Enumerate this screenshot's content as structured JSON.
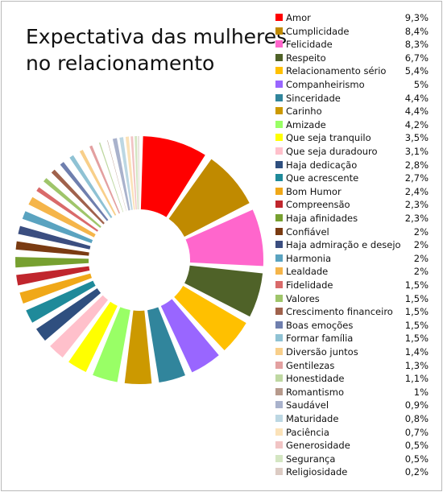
{
  "chart_data": {
    "type": "pie",
    "title_lines": [
      "Expectativa das mulheres",
      "no relacionamento"
    ],
    "legend_position": "right",
    "slices": [
      {
        "label": "Amor",
        "display": "9,3%",
        "value": 9.3,
        "color": "#ff0000"
      },
      {
        "label": "Cumplicidade",
        "display": "8,4%",
        "value": 8.4,
        "color": "#c08a00"
      },
      {
        "label": "Felicidade",
        "display": "8,3%",
        "value": 8.3,
        "color": "#ff66cc"
      },
      {
        "label": "Respeito",
        "display": "6,7%",
        "value": 6.7,
        "color": "#4f6228"
      },
      {
        "label": "Relacionamento sério",
        "display": "5,4%",
        "value": 5.4,
        "color": "#ffc000"
      },
      {
        "label": "Companheirismo",
        "display": "5%",
        "value": 5.0,
        "color": "#9966ff"
      },
      {
        "label": "Sinceridade",
        "display": "4,4%",
        "value": 4.4,
        "color": "#31859c"
      },
      {
        "label": "Carinho",
        "display": "4,4%",
        "value": 4.4,
        "color": "#cc9900"
      },
      {
        "label": "Amizade",
        "display": "4,2%",
        "value": 4.2,
        "color": "#99ff66"
      },
      {
        "label": "Que seja tranquilo",
        "display": "3,5%",
        "value": 3.5,
        "color": "#ffff00"
      },
      {
        "label": "Que seja duradouro",
        "display": "3,1%",
        "value": 3.1,
        "color": "#ffc0cb"
      },
      {
        "label": "Haja dedicação",
        "display": "2,8%",
        "value": 2.8,
        "color": "#2f4f7f"
      },
      {
        "label": "Que acrescente",
        "display": "2,7%",
        "value": 2.7,
        "color": "#1f8a9a"
      },
      {
        "label": "Bom Humor",
        "display": "2,4%",
        "value": 2.4,
        "color": "#f0a818"
      },
      {
        "label": "Compreensão",
        "display": "2,3%",
        "value": 2.3,
        "color": "#c0262d"
      },
      {
        "label": "Haja afinidades",
        "display": "2,3%",
        "value": 2.3,
        "color": "#77a030"
      },
      {
        "label": "Confiável",
        "display": "2%",
        "value": 2.0,
        "color": "#7a3b12"
      },
      {
        "label": "Haja admiração e desejo",
        "display": "2%",
        "value": 2.0,
        "color": "#3b4e80"
      },
      {
        "label": "Harmonia",
        "display": "2%",
        "value": 2.0,
        "color": "#5aa3c0"
      },
      {
        "label": "Lealdade",
        "display": "2%",
        "value": 2.0,
        "color": "#f5b54a"
      },
      {
        "label": "Fidelidade",
        "display": "1,5%",
        "value": 1.5,
        "color": "#d96a6a"
      },
      {
        "label": "Valores",
        "display": "1,5%",
        "value": 1.5,
        "color": "#9fc56a"
      },
      {
        "label": "Crescimento financeiro",
        "display": "1,5%",
        "value": 1.5,
        "color": "#a0624c"
      },
      {
        "label": "Boas emoções",
        "display": "1,5%",
        "value": 1.5,
        "color": "#6f7fae"
      },
      {
        "label": "Formar família",
        "display": "1,5%",
        "value": 1.5,
        "color": "#8fc2d4"
      },
      {
        "label": "Diversão juntos",
        "display": "1,4%",
        "value": 1.4,
        "color": "#f8cf8a"
      },
      {
        "label": "Gentilezas",
        "display": "1,3%",
        "value": 1.3,
        "color": "#e3a0a0"
      },
      {
        "label": "Honestidade",
        "display": "1,1%",
        "value": 1.1,
        "color": "#bfd8a2"
      },
      {
        "label": "Romantismo",
        "display": "1%",
        "value": 1.0,
        "color": "#b79a8c"
      },
      {
        "label": "Saudável",
        "display": "0,9%",
        "value": 0.9,
        "color": "#a9b2cc"
      },
      {
        "label": "Maturidade",
        "display": "0,8%",
        "value": 0.8,
        "color": "#bcd7e3"
      },
      {
        "label": "Paciência",
        "display": "0,7%",
        "value": 0.7,
        "color": "#fbe2b8"
      },
      {
        "label": "Generosidade",
        "display": "0,5%",
        "value": 0.5,
        "color": "#f1c4c4"
      },
      {
        "label": "Segurança",
        "display": "0,5%",
        "value": 0.5,
        "color": "#d4e6c2"
      },
      {
        "label": "Religiosidade",
        "display": "0,2%",
        "value": 0.2,
        "color": "#dccbc3"
      }
    ]
  }
}
